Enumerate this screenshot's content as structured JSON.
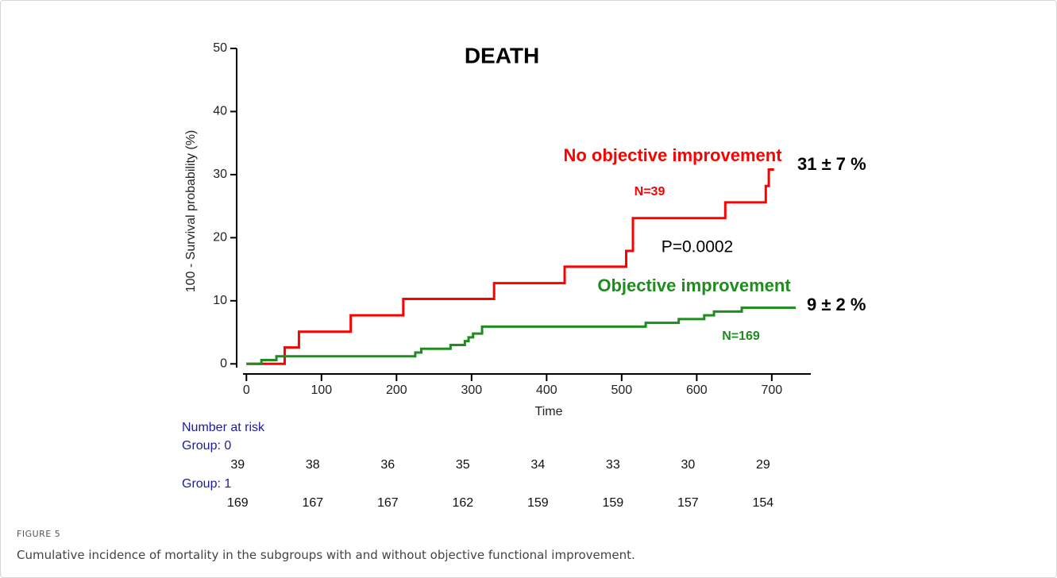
{
  "chart_data": {
    "type": "step",
    "title": "DEATH",
    "y_label": "100 - Survival probability (%)",
    "x_label": "Time",
    "xlim": [
      -13,
      752
    ],
    "ylim": [
      -1.6,
      50
    ],
    "xticks": [
      0,
      100,
      200,
      300,
      400,
      500,
      600,
      700
    ],
    "yticks": [
      0,
      10,
      20,
      30,
      40,
      50
    ],
    "series": [
      {
        "name": "No objective improvement",
        "color": "#ff0000",
        "x": [
          0,
          51,
          70,
          139,
          209,
          330,
          424,
          506,
          515,
          638,
          692,
          696,
          703
        ],
        "values": [
          0,
          2.6,
          5.1,
          7.7,
          10.3,
          12.8,
          15.4,
          17.9,
          23.1,
          25.6,
          28.2,
          30.8,
          30.8
        ]
      },
      {
        "name": "Objective improvement",
        "color": "#1e8c1e",
        "x": [
          0,
          20,
          40,
          225,
          233,
          272,
          291,
          296,
          302,
          314,
          532,
          576,
          610,
          623,
          660,
          732
        ],
        "values": [
          0,
          0.6,
          1.2,
          1.8,
          2.4,
          3.0,
          3.6,
          4.2,
          4.8,
          5.9,
          6.5,
          7.1,
          7.7,
          8.3,
          8.9,
          8.9
        ]
      }
    ],
    "annotations": [
      "N=39",
      "31 ± 7 %",
      "P=0.0002",
      "9 ± 2 %",
      "N=169"
    ],
    "risk_table": {
      "title": "Number at risk",
      "groups": [
        {
          "name": "Group: 0",
          "values": [
            "39",
            "38",
            "36",
            "35",
            "34",
            "33",
            "30",
            "29"
          ]
        },
        {
          "name": "Group: 1",
          "values": [
            "169",
            "167",
            "167",
            "162",
            "159",
            "159",
            "157",
            "154"
          ]
        }
      ]
    }
  },
  "figure": {
    "label": "FIGURE 5",
    "caption": "Cumulative incidence of mortality in the subgroups with and without objective functional improvement."
  }
}
